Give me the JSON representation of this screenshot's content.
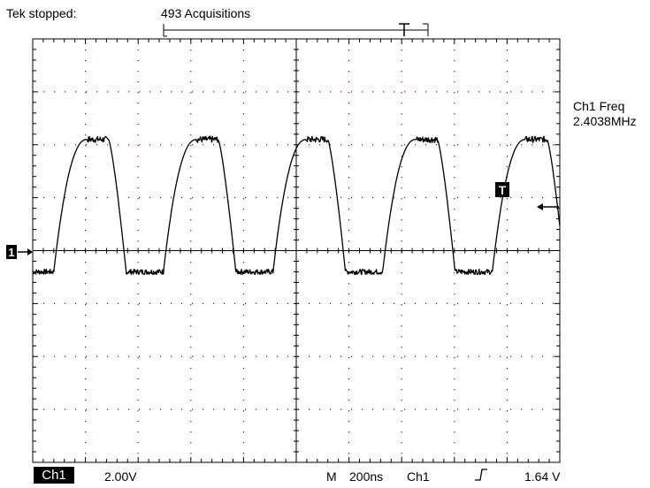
{
  "status": {
    "state_label": "Tek stopped:",
    "acquisitions": "493 Acquisitions"
  },
  "trigger_marker_label": "T",
  "channel_marker_label": "1",
  "measurement": {
    "name": "Ch1 Freq",
    "value": "2.4038MHz"
  },
  "footer": {
    "channel_label": "Ch1",
    "volts_per_div": "2.00V",
    "mode": "M",
    "time_per_div": "200ns",
    "trigger_source": "Ch1",
    "trigger_level": "1.64 V"
  },
  "colors": {
    "trace": "#000000",
    "grid": "#cc0000",
    "frame": "#000000",
    "background": "#ffffff"
  },
  "chart_data": {
    "type": "line",
    "grid": true,
    "divisions": {
      "x": 10,
      "y": 8
    },
    "x_unit_per_div": "200ns",
    "y_unit_per_div": "2.00V",
    "waveform": {
      "type": "square",
      "frequency": "2.4038MHz",
      "period_div": 2.08,
      "first_rise_div": 0.4,
      "high_div": 2.1,
      "low_div": -0.4
    }
  }
}
